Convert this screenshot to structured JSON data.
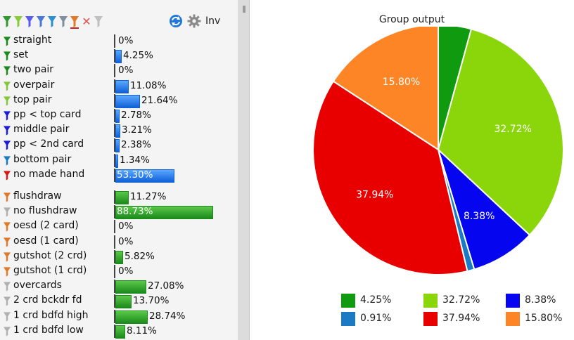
{
  "toolbar": {
    "filter_colors": [
      "#2f9a2f",
      "#8acb3c",
      "#5a5af0",
      "#4a78d8",
      "#2d8fd0",
      "#7f8fa0",
      "#e07a2a",
      "#c0c0c0"
    ],
    "clear_icon": "close-icon",
    "refresh_icon": "refresh-icon",
    "settings_icon": "gear-icon",
    "inv_label": "Inv"
  },
  "made_hands": [
    {
      "label": "straight",
      "value": 0,
      "pct": "0%",
      "icon_color": "#1a8a1a"
    },
    {
      "label": "set",
      "value": 4.25,
      "pct": "4.25%",
      "icon_color": "#1a8a1a"
    },
    {
      "label": "two pair",
      "value": 0,
      "pct": "0%",
      "icon_color": "#1a8a1a"
    },
    {
      "label": "overpair",
      "value": 11.08,
      "pct": "11.08%",
      "icon_color": "#84c83a"
    },
    {
      "label": "top pair",
      "value": 21.64,
      "pct": "21.64%",
      "icon_color": "#84c83a"
    },
    {
      "label": "pp < top card",
      "value": 2.78,
      "pct": "2.78%",
      "icon_color": "#1d1dd8"
    },
    {
      "label": "middle pair",
      "value": 3.21,
      "pct": "3.21%",
      "icon_color": "#1d1dd8"
    },
    {
      "label": "pp < 2nd card",
      "value": 2.38,
      "pct": "2.38%",
      "icon_color": "#1d1dd8"
    },
    {
      "label": "bottom pair",
      "value": 1.34,
      "pct": "1.34%",
      "icon_color": "#1a7ac0"
    },
    {
      "label": "no made hand",
      "value": 53.3,
      "pct": "53.30%",
      "icon_color": "#d81818"
    }
  ],
  "draws": [
    {
      "label": "flushdraw",
      "value": 11.27,
      "pct": "11.27%",
      "icon_color": "#e07a2a"
    },
    {
      "label": "no flushdraw",
      "value": 88.73,
      "pct": "88.73%",
      "icon_color": "#b0b0b0"
    },
    {
      "label": "oesd (2 card)",
      "value": 0,
      "pct": "0%",
      "icon_color": "#e07a2a"
    },
    {
      "label": "oesd (1 card)",
      "value": 0,
      "pct": "0%",
      "icon_color": "#e07a2a"
    },
    {
      "label": "gutshot (2 crd)",
      "value": 5.82,
      "pct": "5.82%",
      "icon_color": "#e07a2a"
    },
    {
      "label": "gutshot (1 crd)",
      "value": 0,
      "pct": "0%",
      "icon_color": "#e07a2a"
    },
    {
      "label": "overcards",
      "value": 27.08,
      "pct": "27.08%",
      "icon_color": "#b0b0b0"
    },
    {
      "label": "2 crd bckdr fd",
      "value": 13.7,
      "pct": "13.70%",
      "icon_color": "#b0b0b0"
    },
    {
      "label": "1 crd bdfd high",
      "value": 28.74,
      "pct": "28.74%",
      "icon_color": "#b0b0b0"
    },
    {
      "label": "1 crd bdfd low",
      "value": 8.11,
      "pct": "8.11%",
      "icon_color": "#b0b0b0"
    }
  ],
  "chart_data": {
    "type": "pie",
    "title": "Group output",
    "slices": [
      {
        "label": "4.25%",
        "value": 4.25,
        "color": "#0f9a0f"
      },
      {
        "label": "32.72%",
        "value": 32.72,
        "color": "#8ad60a"
      },
      {
        "label": "8.38%",
        "value": 8.38,
        "color": "#0505f0"
      },
      {
        "label": "0.91%",
        "value": 0.91,
        "color": "#1a7ac4"
      },
      {
        "label": "37.94%",
        "value": 37.94,
        "color": "#e80000"
      },
      {
        "label": "15.80%",
        "value": 15.8,
        "color": "#fd8526"
      }
    ],
    "legend_order": [
      0,
      1,
      2,
      3,
      4,
      5
    ],
    "legend_placement": "bottom"
  }
}
